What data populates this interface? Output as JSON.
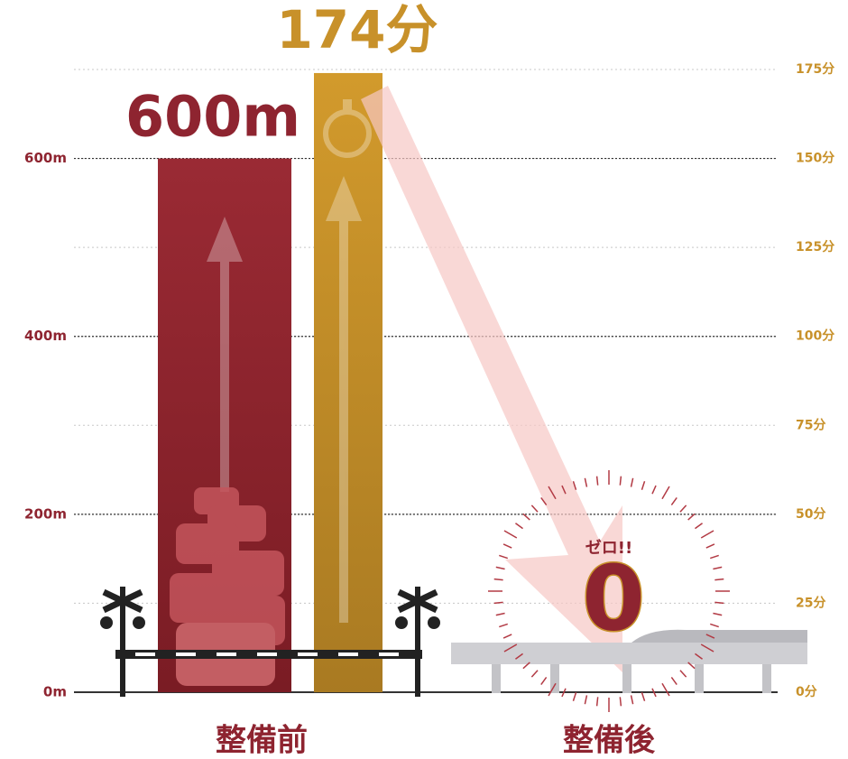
{
  "chart_data": {
    "type": "bar",
    "categories": [
      "整備前",
      "整備後"
    ],
    "series": [
      {
        "color": "#8e2430",
        "values": [
          600,
          null
        ],
        "value_labels": [
          "600m",
          null
        ]
      },
      {
        "color": "#c8912a",
        "axis": "y2",
        "values": [
          174,
          0
        ],
        "value_labels": [
          "174分",
          null
        ]
      }
    ],
    "annotation": "ゼロ!!",
    "ylim": [
      0,
      700
    ],
    "yticks": [
      {
        "value": 0,
        "label": "0m"
      },
      {
        "value": 200,
        "label": "200m"
      },
      {
        "value": 400,
        "label": "400m"
      },
      {
        "value": 600,
        "label": "600m"
      }
    ],
    "y2lim": [
      0,
      175
    ],
    "y2ticks": [
      {
        "value": 0,
        "label": "0分"
      },
      {
        "value": 25,
        "label": "25分"
      },
      {
        "value": 50,
        "label": "50分"
      },
      {
        "value": 75,
        "label": "75分"
      },
      {
        "value": 100,
        "label": "100分"
      },
      {
        "value": 125,
        "label": "125分"
      },
      {
        "value": 150,
        "label": "150分"
      },
      {
        "value": 175,
        "label": "175分"
      }
    ],
    "axis_colors": {
      "y": "#8e2430",
      "y2": "#c8912a"
    },
    "grid": true
  }
}
